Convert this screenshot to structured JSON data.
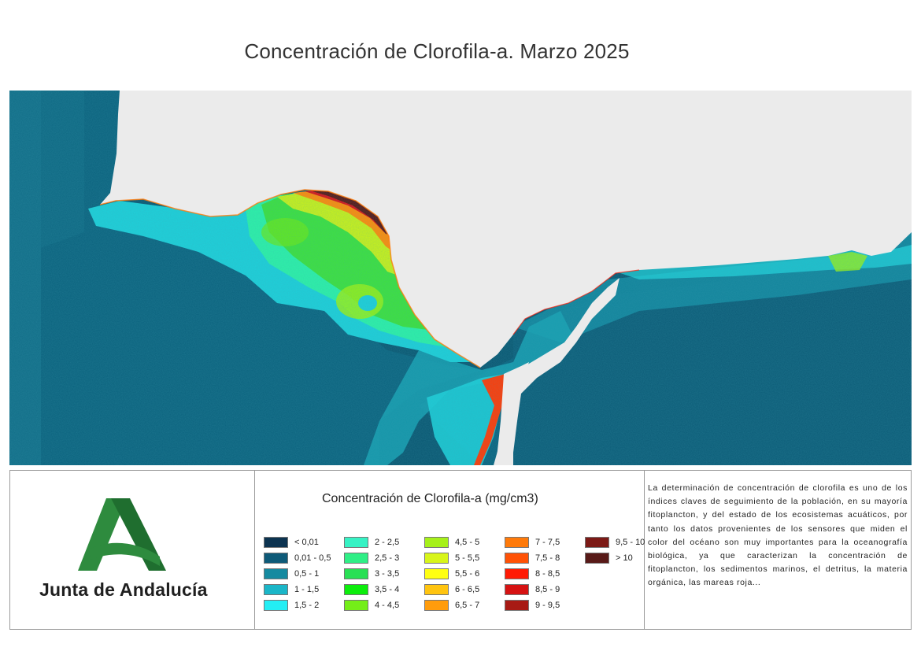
{
  "title": "Concentración de Clorofila-a. Marzo 2025",
  "logo": {
    "text": "Junta de Andalucía"
  },
  "legend": {
    "title": "Concentración de Clorofila-a (mg/cm3)",
    "items": [
      {
        "label": "< 0,01",
        "color": "#0c3350"
      },
      {
        "label": "0,01 - 0,5",
        "color": "#0e5a78"
      },
      {
        "label": "0,5 - 1",
        "color": "#158aa0"
      },
      {
        "label": "1 - 1,5",
        "color": "#1ab6c8"
      },
      {
        "label": "1,5 - 2",
        "color": "#23eef4"
      },
      {
        "label": "2 - 2,5",
        "color": "#36f2c4"
      },
      {
        "label": "2,5 - 3",
        "color": "#2fef86"
      },
      {
        "label": "3 - 3,5",
        "color": "#28e054"
      },
      {
        "label": "3,5 - 4",
        "color": "#0cee0c"
      },
      {
        "label": "4 - 4,5",
        "color": "#74ee18"
      },
      {
        "label": "4,5 - 5",
        "color": "#a6f01a"
      },
      {
        "label": "5 - 5,5",
        "color": "#d8f51a"
      },
      {
        "label": "5,5 - 6",
        "color": "#ffff12"
      },
      {
        "label": "6 - 6,5",
        "color": "#ffc40f"
      },
      {
        "label": "6,5 - 7",
        "color": "#ff9c0c"
      },
      {
        "label": "7 - 7,5",
        "color": "#ff7a0a"
      },
      {
        "label": "7,5 - 8",
        "color": "#ff5206"
      },
      {
        "label": "8 - 8,5",
        "color": "#ff1a04"
      },
      {
        "label": "8,5 - 9",
        "color": "#d61212"
      },
      {
        "label": "9 - 9,5",
        "color": "#a81a14"
      },
      {
        "label": "9,5 - 10",
        "color": "#7c1a16"
      },
      {
        "label": "> 10",
        "color": "#581a18"
      }
    ]
  },
  "description": "La determinación de concentración de clorofila es uno de los índices claves de seguimiento de la población, en su mayoría fitoplancton, y del estado de los ecosistemas acuáticos, por tanto los datos provenientes de los sensores que miden el color del océano son muy importantes para la oceanografía biológica, ya que caracterizan la concentración de fitoplancton, los sedimentos marinos, el detritus, la materia orgánica, las mareas roja...",
  "colors": {
    "land": "#ebebeb",
    "logo_green": "#2e8b3e",
    "border": "#9a9a9a"
  }
}
